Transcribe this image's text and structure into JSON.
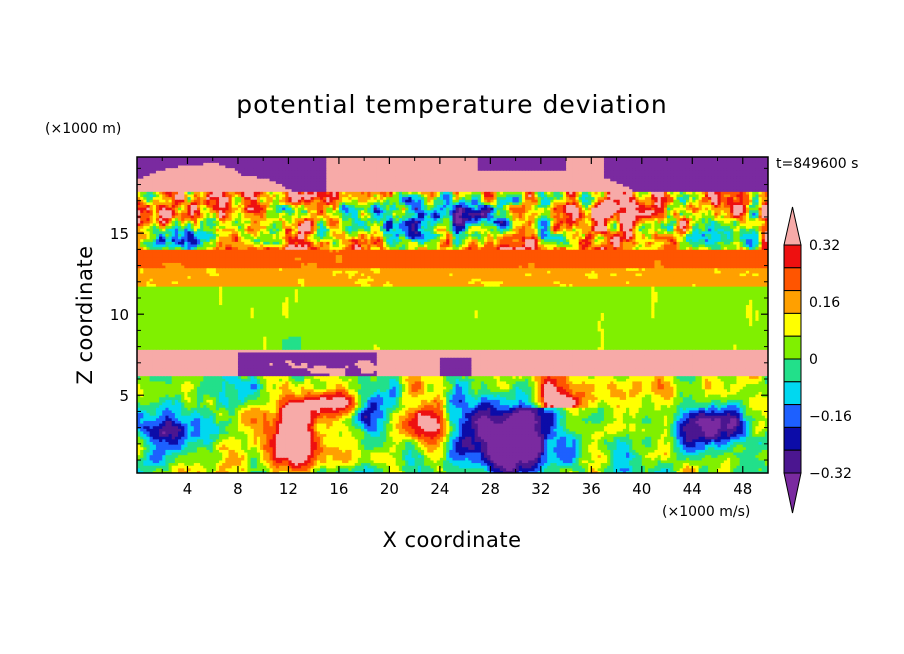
{
  "chart_data": {
    "type": "heatmap",
    "title": "potential temperature deviation",
    "xlabel": "X coordinate",
    "ylabel": "Z coordinate",
    "x_units": "(×1000 m/s)",
    "y_units": "(×1000 m)",
    "time_label": "t=849600 s",
    "xlim": [
      0,
      50
    ],
    "ylim": [
      0.2,
      19.7
    ],
    "x_ticks": [
      "4",
      "8",
      "12",
      "16",
      "20",
      "24",
      "28",
      "32",
      "36",
      "40",
      "44",
      "48"
    ],
    "x_tick_values": [
      4,
      8,
      12,
      16,
      20,
      24,
      28,
      32,
      36,
      40,
      44,
      48
    ],
    "y_ticks": [
      "5",
      "10",
      "15"
    ],
    "y_tick_values": [
      5,
      10,
      15
    ],
    "colorbar": {
      "levels": [
        -0.4,
        -0.32,
        -0.24,
        -0.16,
        -0.08,
        0,
        0.08,
        0.16,
        0.24,
        0.32,
        0.4
      ],
      "tick_labels": [
        "0.32",
        "0.16",
        "0",
        "−0.16",
        "−0.32"
      ],
      "tick_values": [
        0.32,
        0.16,
        0,
        -0.16,
        -0.32
      ],
      "colors": [
        "#7a2aa0",
        "#4b1690",
        "#0c0ca8",
        "#1d60ff",
        "#00d8f0",
        "#22e08a",
        "#80f000",
        "#ffff00",
        "#ffa000",
        "#ff5500",
        "#ee1010",
        "#f7aaa8"
      ],
      "extend": "both"
    },
    "layers": [
      {
        "z_range": [
          17.5,
          19.7
        ],
        "value": "mixed ≤ -0.40 / ≥ 0.40"
      },
      {
        "z_range": [
          14.0,
          17.5
        ],
        "value": "mixed, noisy"
      },
      {
        "z_range": [
          12.8,
          14.0
        ],
        "value": 0.3
      },
      {
        "z_range": [
          11.8,
          12.8
        ],
        "value": 0.18
      },
      {
        "z_range": [
          7.8,
          11.8
        ],
        "value": 0.05
      },
      {
        "z_range": [
          6.2,
          7.8
        ],
        "value": "≥ 0.40 with ≤ -0.40 patches"
      },
      {
        "z_range": [
          0.2,
          6.2
        ],
        "value": "mixed, turbulent"
      }
    ]
  }
}
